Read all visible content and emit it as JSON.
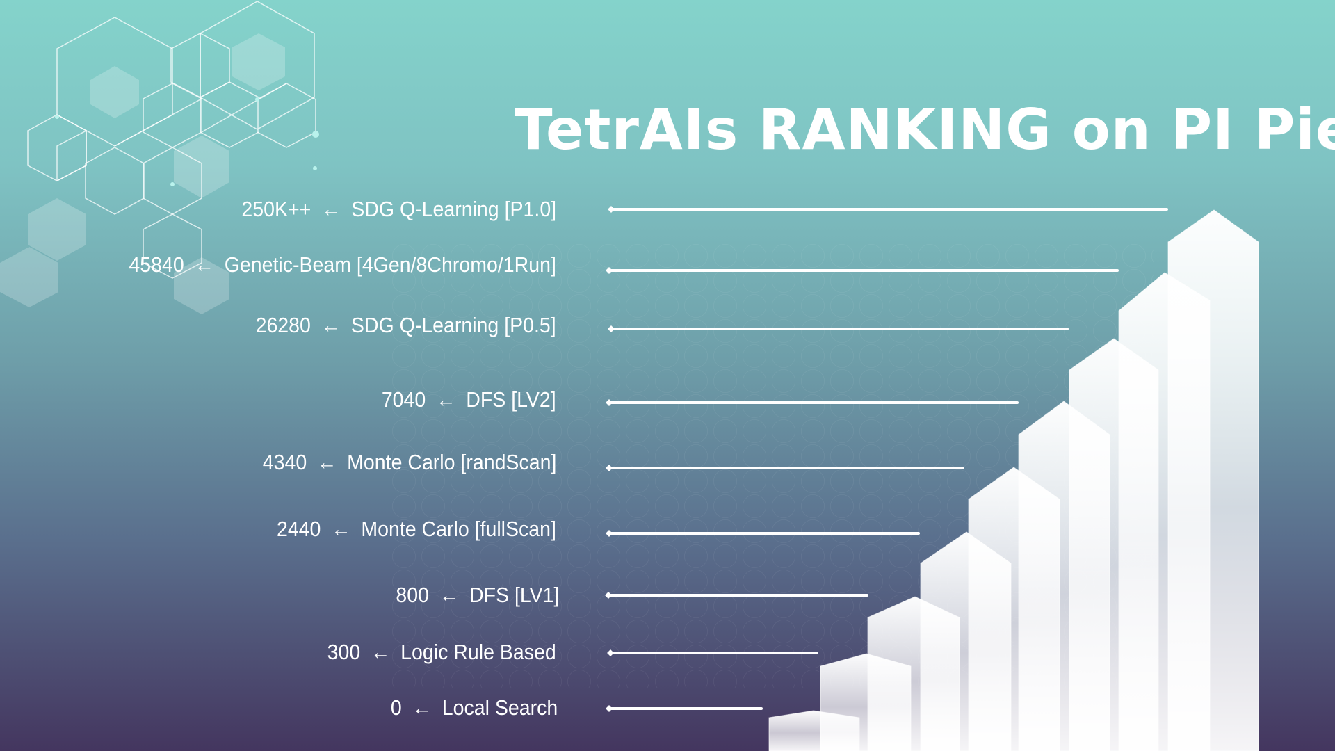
{
  "title": "TetrAIs RANKING on PI Pieces",
  "ranking": [
    {
      "score": "250K++",
      "name": "SDG Q-Learning [P1.0]"
    },
    {
      "score": "45840",
      "name": "Genetic-Beam [4Gen/8Chromo/1Run]"
    },
    {
      "score": "26280",
      "name": "SDG Q-Learning [P0.5]"
    },
    {
      "score": "7040",
      "name": "DFS [LV2]"
    },
    {
      "score": "4340",
      "name": "Monte Carlo [randScan]"
    },
    {
      "score": "2440",
      "name": "Monte Carlo [fullScan]"
    },
    {
      "score": "800",
      "name": "DFS [LV1]"
    },
    {
      "score": "300",
      "name": "Logic Rule Based"
    },
    {
      "score": "0",
      "name": "Local Search"
    }
  ],
  "arrow_glyph": "←",
  "colors": {
    "text": "#ffffff",
    "bg_top": "#84d3cb",
    "bg_bottom": "#44365f"
  }
}
